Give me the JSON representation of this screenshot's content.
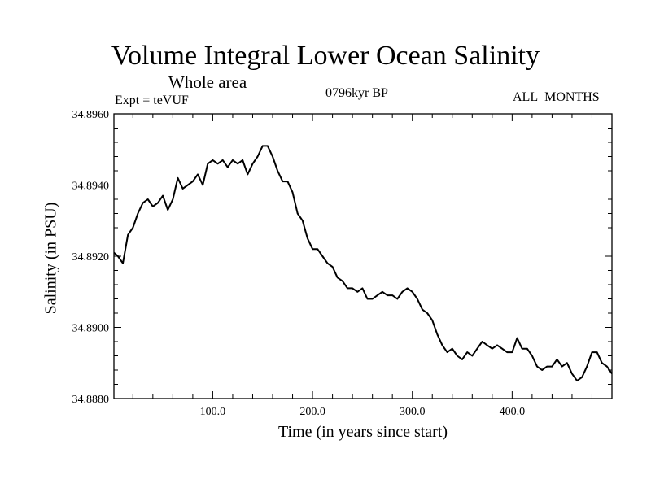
{
  "chart_data": {
    "type": "line",
    "title": "Volume Integral Lower Ocean Salinity",
    "subtitle": "Whole area",
    "expt_label": "Expt = teVUF",
    "period_label": "0796kyr BP",
    "months_label": "ALL_MONTHS",
    "xlabel": "Time (in years since start)",
    "ylabel": "Salinity (in PSU)",
    "xlim": [
      1,
      500
    ],
    "ylim": [
      34.888,
      34.896
    ],
    "x_ticks": [
      {
        "value": 100,
        "label": "100.0"
      },
      {
        "value": 200,
        "label": "200.0"
      },
      {
        "value": 300,
        "label": "300.0"
      },
      {
        "value": 400,
        "label": "400.0"
      }
    ],
    "y_ticks": [
      {
        "value": 34.888,
        "label": "34.8880"
      },
      {
        "value": 34.89,
        "label": "34.8900"
      },
      {
        "value": 34.892,
        "label": "34.8920"
      },
      {
        "value": 34.894,
        "label": "34.8940"
      },
      {
        "value": 34.896,
        "label": "34.8960"
      }
    ],
    "series": [
      {
        "name": "Salinity",
        "color": "#000000",
        "x": [
          1,
          5,
          10,
          15,
          20,
          25,
          30,
          35,
          40,
          45,
          50,
          55,
          60,
          65,
          70,
          75,
          80,
          85,
          90,
          95,
          100,
          105,
          110,
          115,
          120,
          125,
          130,
          135,
          140,
          145,
          150,
          155,
          160,
          165,
          170,
          175,
          180,
          185,
          190,
          195,
          200,
          205,
          210,
          215,
          220,
          225,
          230,
          235,
          240,
          245,
          250,
          255,
          260,
          265,
          270,
          275,
          280,
          285,
          290,
          295,
          300,
          305,
          310,
          315,
          320,
          325,
          330,
          335,
          340,
          345,
          350,
          355,
          360,
          365,
          370,
          375,
          380,
          385,
          390,
          395,
          400,
          405,
          410,
          415,
          420,
          425,
          430,
          435,
          440,
          445,
          450,
          455,
          460,
          465,
          470,
          475,
          480,
          485,
          490,
          495,
          500
        ],
        "y": [
          34.8921,
          34.892,
          34.8918,
          34.8926,
          34.8928,
          34.8932,
          34.8935,
          34.8936,
          34.8934,
          34.8935,
          34.8937,
          34.8933,
          34.8936,
          34.8942,
          34.8939,
          34.894,
          34.8941,
          34.8943,
          34.894,
          34.8946,
          34.8947,
          34.8946,
          34.8947,
          34.8945,
          34.8947,
          34.8946,
          34.8947,
          34.8943,
          34.8946,
          34.8948,
          34.8951,
          34.8951,
          34.8948,
          34.8944,
          34.8941,
          34.8941,
          34.8938,
          34.8932,
          34.893,
          34.8925,
          34.8922,
          34.8922,
          34.892,
          34.8918,
          34.8917,
          34.8914,
          34.8913,
          34.8911,
          34.8911,
          34.891,
          34.8911,
          34.8908,
          34.8908,
          34.8909,
          34.891,
          34.8909,
          34.8909,
          34.8908,
          34.891,
          34.8911,
          34.891,
          34.8908,
          34.8905,
          34.8904,
          34.8902,
          34.8898,
          34.8895,
          34.8893,
          34.8894,
          34.8892,
          34.8891,
          34.8893,
          34.8892,
          34.8894,
          34.8896,
          34.8895,
          34.8894,
          34.8895,
          34.8894,
          34.8893,
          34.8893,
          34.8897,
          34.8894,
          34.8894,
          34.8892,
          34.8889,
          34.8888,
          34.8889,
          34.8889,
          34.8891,
          34.8889,
          34.889,
          34.8887,
          34.8885,
          34.8886,
          34.8889,
          34.8893,
          34.8893,
          34.889,
          34.8889,
          34.8887
        ]
      }
    ]
  }
}
